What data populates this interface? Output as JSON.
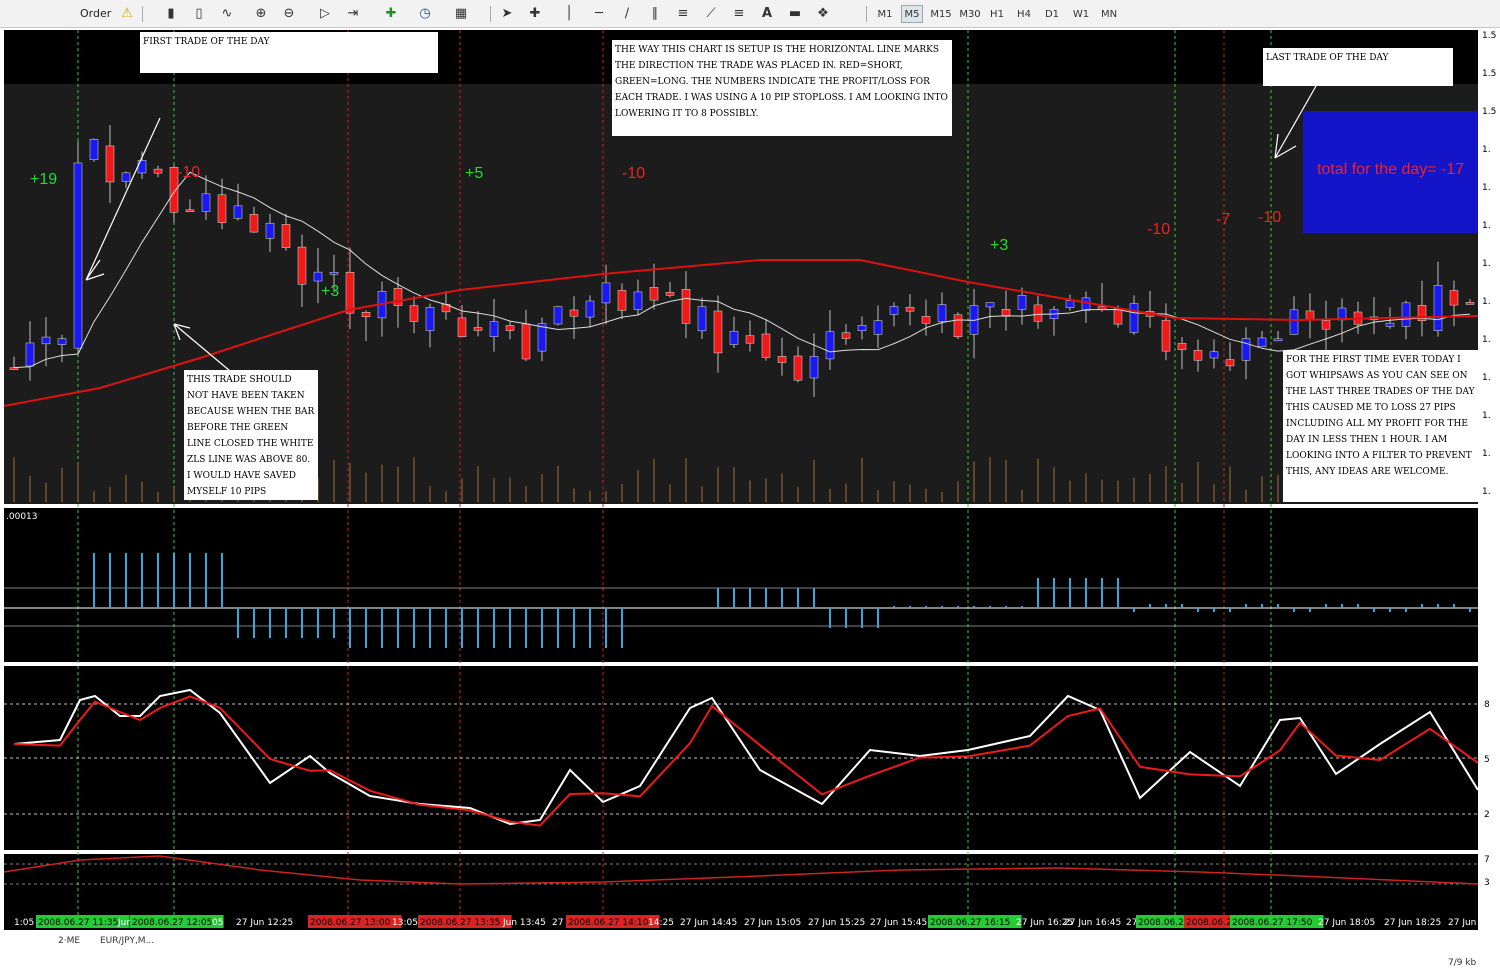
{
  "toolbar": {
    "order_label": "Order",
    "timeframes": [
      "M1",
      "M5",
      "M15",
      "M30",
      "H1",
      "H4",
      "D1",
      "W1",
      "MN"
    ],
    "active_timeframe": "M5"
  },
  "notes": {
    "first_trade": "FIRST TRADE OF THE DAY",
    "setup": "THE WAY THIS CHART IS SETUP IS THE HORIZONTAL LINE MARKS THE DIRECTION THE TRADE WAS PLACED IN. RED=SHORT, GREEN=LONG. THE NUMBERS INDICATE THE PROFIT/LOSS FOR EACH TRADE. I WAS USING A 10 PIP STOPLOSS. I AM LOOKING INTO LOWERING IT TO 8 POSSIBLY.",
    "last_trade": "LAST TRADE OF THE DAY",
    "should_not": "THIS TRADE SHOULD NOT HAVE BEEN TAKEN BECAUSE WHEN THE BAR BEFORE THE GREEN LINE CLOSED THE WHITE ZLS LINE WAS ABOVE 80. I WOULD HAVE SAVED MYSELF 10 PIPS",
    "whipsaws": "FOR THE FIRST TIME EVER TODAY I GOT WHIPSAWS AS YOU CAN SEE ON THE LAST THREE TRADES OF THE DAY THIS CAUSED ME TO LOSS 27 PIPS INCLUDING ALL MY PROFIT FOR THE DAY IN LESS THEN 1 HOUR. I AM LOOKING INTO A FILTER TO PREVENT THIS, ANY IDEAS ARE WELCOME."
  },
  "total_text": "total for the day= -17",
  "pl_labels": [
    "+19",
    "-10",
    "+3",
    "+5",
    "-10",
    "+3",
    "-10",
    "-7",
    "-10"
  ],
  "macd_label": ".00013",
  "time_axis": [
    "1:05",
    "2008.06.27 11:35",
    "Jun",
    "2008.06.27 12:05",
    "05",
    "27 Jun 12:25",
    "2008.06.27 13:00",
    "13:05",
    "2008.06.27 13:35",
    "Jun 13:45",
    "27",
    "2008.06.27 14:10",
    "14:25",
    "27 Jun 14:45",
    "27 Jun 15:05",
    "27 Jun 15:25",
    "27 Jun 15:45",
    "2008.06.27 16:15",
    "27 Jun 16:25",
    "27 Jun 16:45",
    "27",
    "2008.06.2",
    "2008.06.2",
    "2008.06.27 17:50",
    "27 Jun 18:05",
    "27 Jun 18:25",
    "27 Jun 18:"
  ],
  "right_axis": [
    "1.5",
    "1.5",
    "1.5",
    "1.",
    "1.",
    "1.",
    "1.",
    "1.",
    "1.",
    "1.",
    "1.",
    "1.",
    "1."
  ],
  "stoch_axis": [
    "8",
    "5",
    "2"
  ],
  "bottom_axis": [
    "7",
    "3"
  ],
  "status": {
    "left": "2·ME",
    "tab": "EUR/JPY,M...",
    "right": "7/9 kb"
  },
  "colors": {
    "bull": "#1a1aee",
    "bear": "#ee1a1a",
    "ma_red": "#dd1111",
    "ma_white": "#dddddd",
    "macd": "#33aadd",
    "green_line": "#33cc33",
    "red_line": "#cc2222"
  }
}
